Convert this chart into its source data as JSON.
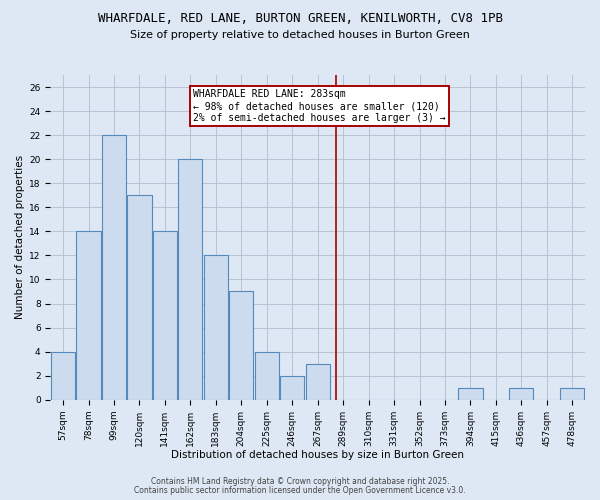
{
  "title": "WHARFDALE, RED LANE, BURTON GREEN, KENILWORTH, CV8 1PB",
  "subtitle": "Size of property relative to detached houses in Burton Green",
  "xlabel": "Distribution of detached houses by size in Burton Green",
  "ylabel": "Number of detached properties",
  "categories": [
    "57sqm",
    "78sqm",
    "99sqm",
    "120sqm",
    "141sqm",
    "162sqm",
    "183sqm",
    "204sqm",
    "225sqm",
    "246sqm",
    "267sqm",
    "289sqm",
    "310sqm",
    "331sqm",
    "352sqm",
    "373sqm",
    "394sqm",
    "415sqm",
    "436sqm",
    "457sqm",
    "478sqm"
  ],
  "values": [
    4,
    14,
    22,
    17,
    14,
    20,
    12,
    9,
    4,
    2,
    3,
    0,
    0,
    0,
    0,
    0,
    1,
    0,
    1,
    0,
    1
  ],
  "bar_color": "#ccdcee",
  "bar_edge_color": "#5588bb",
  "vline_x": 10.72,
  "vline_color": "#aa0000",
  "annotation_text": "WHARFDALE RED LANE: 283sqm\n← 98% of detached houses are smaller (120)\n2% of semi-detached houses are larger (3) →",
  "annotation_box_color": "white",
  "annotation_box_edge": "#aa0000",
  "ylim": [
    0,
    27
  ],
  "yticks": [
    0,
    2,
    4,
    6,
    8,
    10,
    12,
    14,
    16,
    18,
    20,
    22,
    24,
    26
  ],
  "background_color": "#dde8f4",
  "plot_bg_color": "#dde8f4",
  "footer_line1": "Contains HM Land Registry data © Crown copyright and database right 2025.",
  "footer_line2": "Contains public sector information licensed under the Open Government Licence v3.0.",
  "title_fontsize": 9,
  "subtitle_fontsize": 8,
  "axis_label_fontsize": 7.5,
  "tick_fontsize": 6.5,
  "annotation_fontsize": 7,
  "footer_fontsize": 5.5,
  "grid_color": "#b0bece",
  "vline_xdata": 10.72
}
